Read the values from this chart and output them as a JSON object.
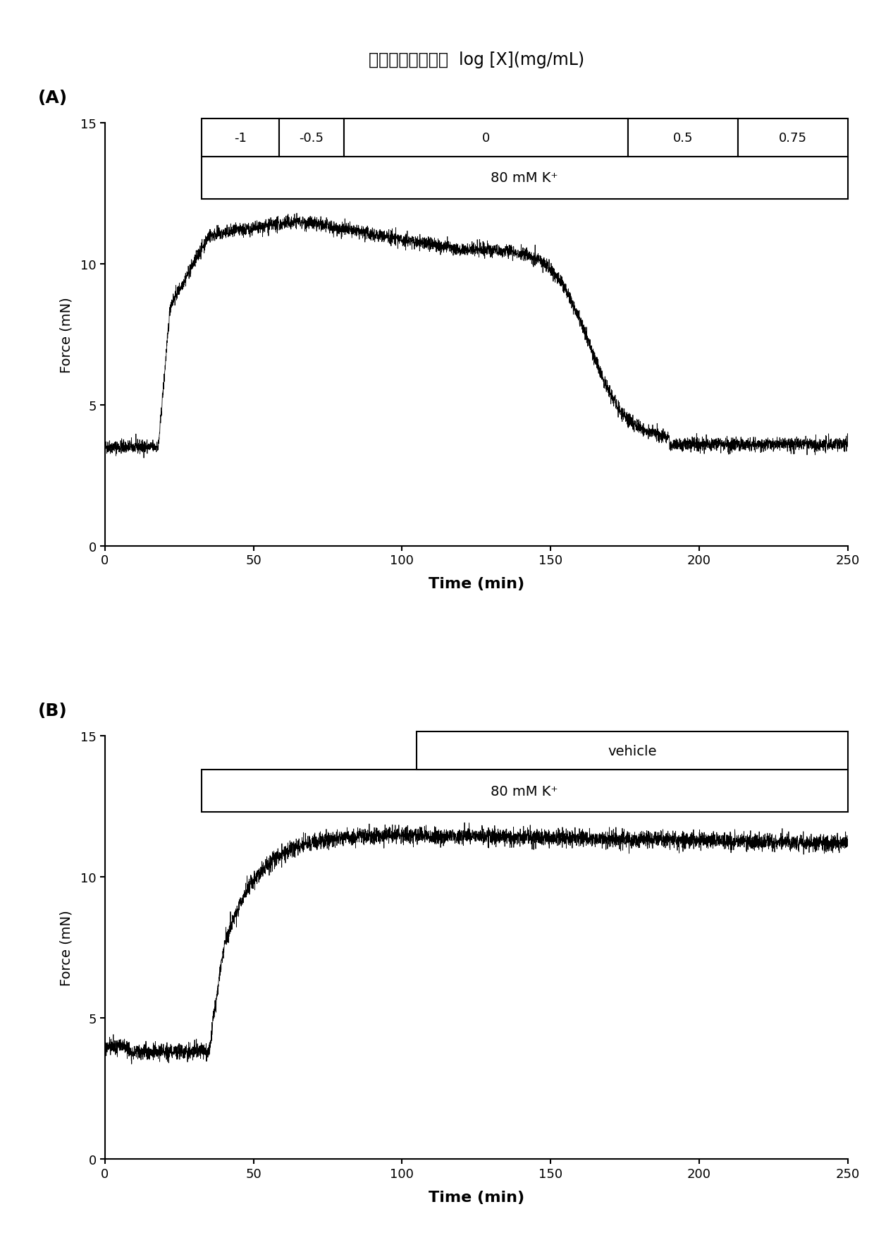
{
  "title": "苦豆子乙酸乙酯部  log [X](mg/mL)",
  "panel_A_label": "(A)",
  "panel_B_label": "(B)",
  "xlabel": "Time (min)",
  "ylabel": "Force (mN)",
  "xlim": [
    0,
    250
  ],
  "ylim": [
    0,
    15
  ],
  "xticks": [
    0,
    50,
    100,
    150,
    200,
    250
  ],
  "yticks": [
    0,
    5,
    10,
    15
  ],
  "box_A_top_labels": [
    "-1",
    "-0.5",
    "0",
    "0.5",
    "0.75"
  ],
  "box_A_bottom_label": "80 mM K⁺",
  "box_B_top_label": "vehicle",
  "box_B_bottom_label": "80 mM K⁺",
  "line_color": "#000000",
  "noise_amplitude": 0.12,
  "seed_A": 42,
  "seed_B": 99
}
